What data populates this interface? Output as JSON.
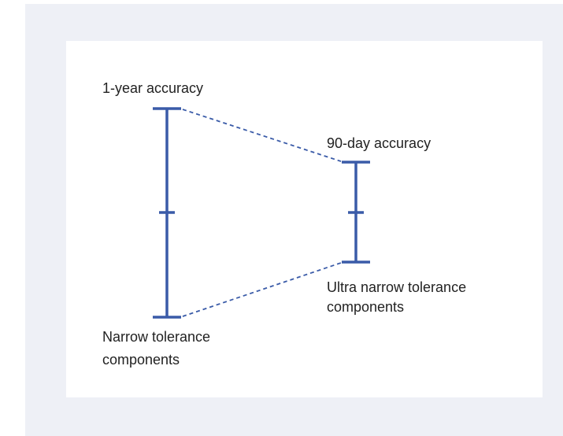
{
  "diagram": {
    "bars": [
      {
        "top_label": "1-year accuracy",
        "bottom_label": [
          "Narrow tolerance",
          "components"
        ]
      },
      {
        "top_label": "90-day accuracy",
        "bottom_label": [
          "Ultra narrow tolerance",
          "components"
        ]
      }
    ]
  }
}
